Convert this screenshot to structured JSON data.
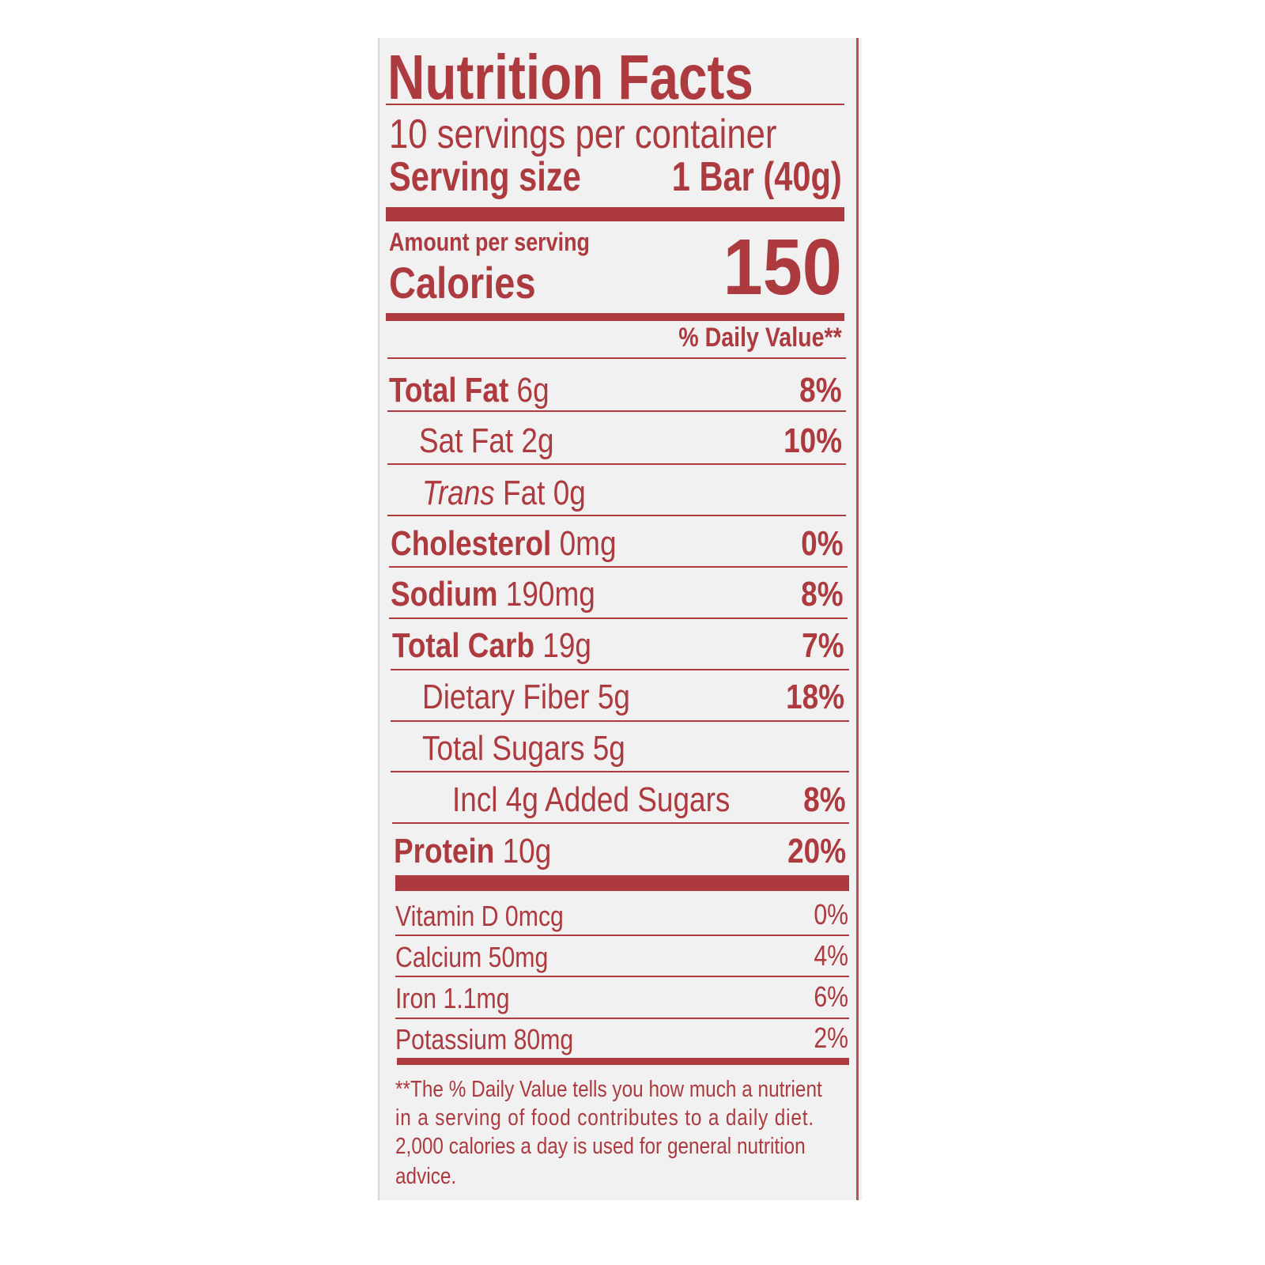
{
  "label": {
    "title": "Nutrition Facts",
    "servings_per_container": "10 servings per container",
    "serving_size_label": "Serving size",
    "serving_size_value": "1 Bar (40g)",
    "amount_per_serving": "Amount per serving",
    "calories_label": "Calories",
    "calories_value": "150",
    "daily_value_header": "% Daily Value**",
    "nutrients": [
      {
        "name": "Total Fat",
        "amount": "6g",
        "dv": "8%"
      },
      {
        "name": "Sat Fat",
        "amount": "2g",
        "dv": "10%"
      },
      {
        "name_italic": "Trans",
        "name": "Fat",
        "amount": "0g"
      },
      {
        "name": "Cholesterol",
        "amount": "0mg",
        "dv": "0%"
      },
      {
        "name": "Sodium",
        "amount": "190mg",
        "dv": "8%"
      },
      {
        "name": "Total Carb",
        "amount": "19g",
        "dv": "7%"
      },
      {
        "name": "Dietary Fiber",
        "amount": "5g",
        "dv": "18%"
      },
      {
        "name": "Total Sugars",
        "amount": "5g"
      },
      {
        "name": "Incl 4g Added Sugars",
        "dv": "8%"
      },
      {
        "name": "Protein",
        "amount": "10g",
        "dv": "20%"
      }
    ],
    "vitamins": [
      {
        "text": "Vitamin D 0mcg",
        "dv": "0%"
      },
      {
        "text": "Calcium 50mg",
        "dv": "4%"
      },
      {
        "text": "Iron 1.1mg",
        "dv": "6%"
      },
      {
        "text": "Potassium 80mg",
        "dv": "2%"
      }
    ],
    "footnote_lines": [
      "**The % Daily Value tells you how much a nutrient",
      "in a serving of food contributes to a daily diet.",
      "2,000 calories a day is used for general nutrition",
      "advice."
    ],
    "colors": {
      "ink": "#ac3a3f",
      "panel": "#f1f1f1"
    }
  }
}
